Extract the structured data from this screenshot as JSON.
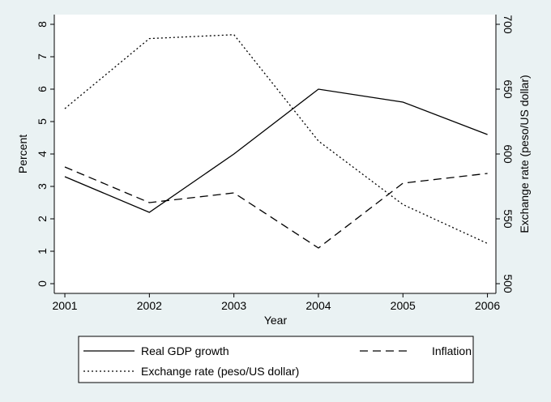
{
  "chart_data": {
    "type": "line",
    "x": [
      2001,
      2002,
      2003,
      2004,
      2005,
      2006
    ],
    "xlabel": "Year",
    "ylabel": "Percent",
    "y2label": "Exchange rate (peso/US dollar)",
    "xlim": [
      2000.875,
      2006.1
    ],
    "xticks": [
      2001,
      2002,
      2003,
      2004,
      2005,
      2006
    ],
    "ylim": [
      -0.3,
      8.3
    ],
    "yticks": [
      0,
      1,
      2,
      3,
      4,
      5,
      6,
      7,
      8
    ],
    "y2lim": [
      492.5,
      707.5
    ],
    "y2ticks": [
      500,
      550,
      600,
      650,
      700
    ],
    "series": [
      {
        "name": "Real GDP growth",
        "color": "#000000",
        "dash": "solid",
        "values": [
          3.3,
          2.2,
          4.0,
          6.0,
          5.6,
          4.6
        ]
      },
      {
        "name": "Inflation",
        "color": "#000000",
        "dash": "dashed",
        "values": [
          3.6,
          2.5,
          2.8,
          1.1,
          3.1,
          3.4
        ]
      },
      {
        "name": "Exchange rate (peso/US dollar)",
        "color": "#000000",
        "dash": "dotted",
        "axis": "y2",
        "values": [
          635,
          689,
          692,
          610,
          561,
          531
        ]
      }
    ],
    "legend": "bottom"
  }
}
